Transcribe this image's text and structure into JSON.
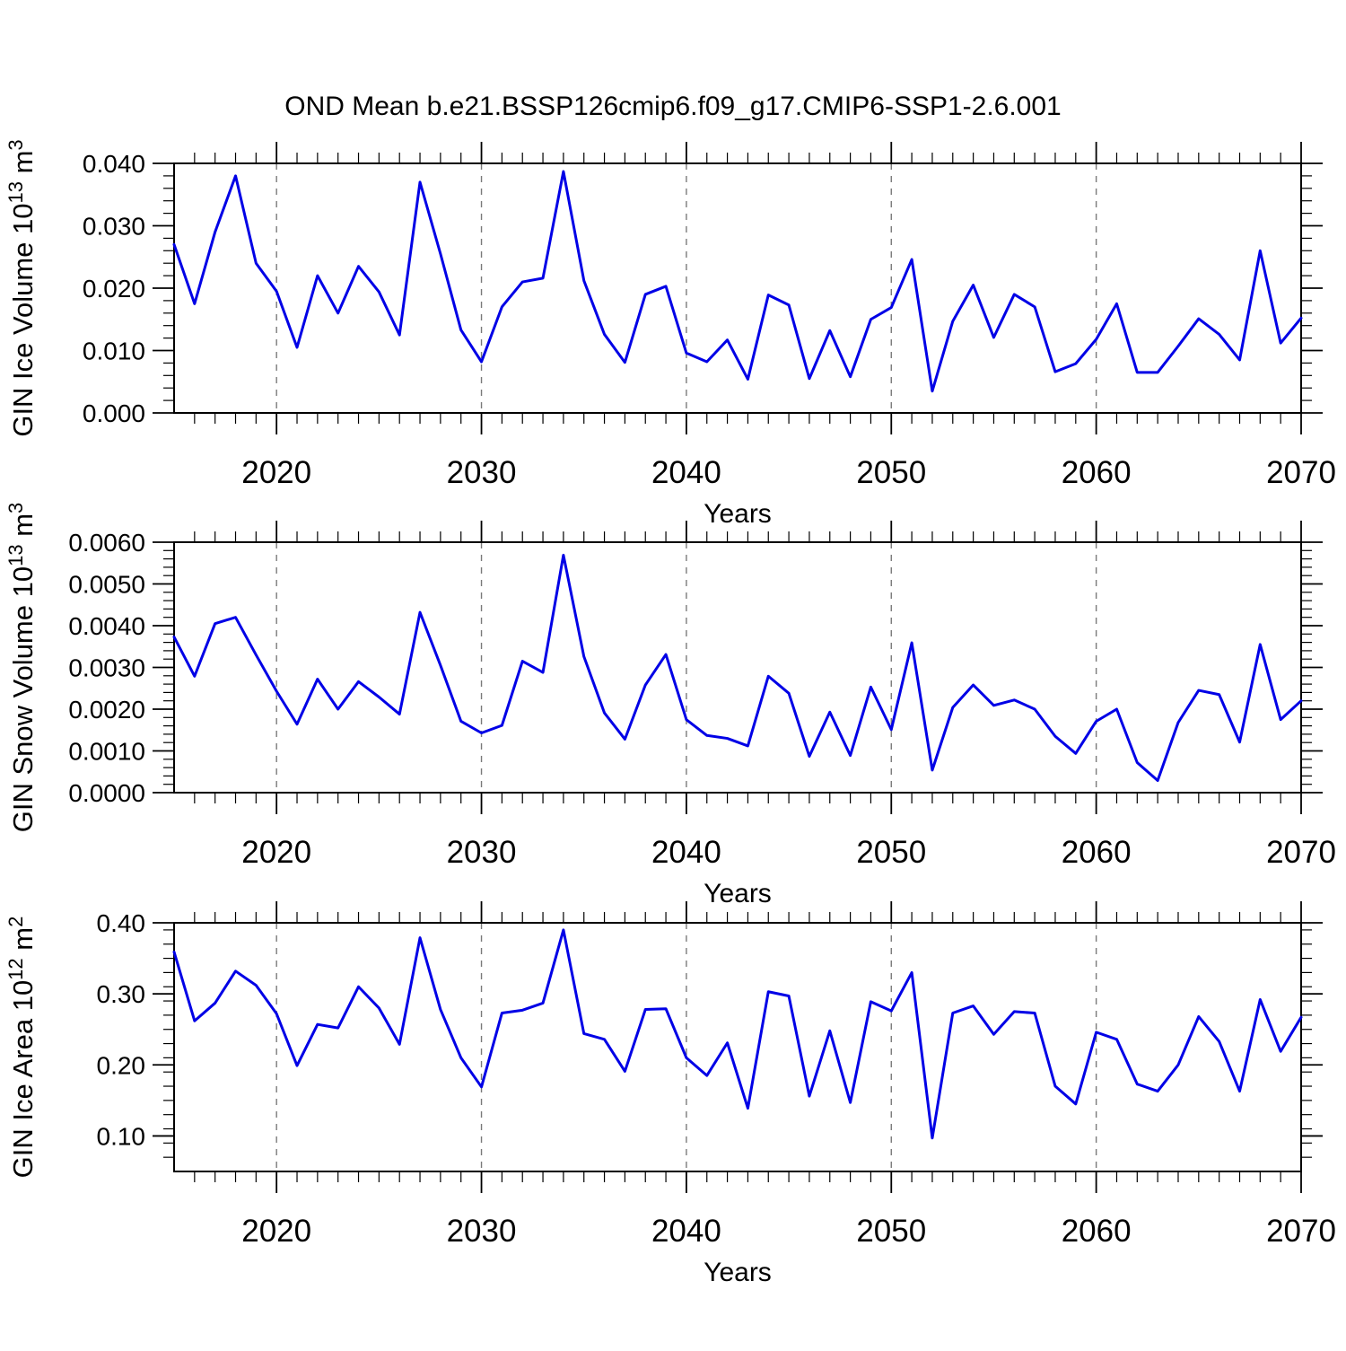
{
  "title": "OND Mean b.e21.BSSP126cmip6.f09_g17.CMIP6-SSP1-2.6.001",
  "colors": {
    "line": "#0000e6",
    "gridline": "#7a7a7a",
    "axis": "#000000",
    "background": "#ffffff"
  },
  "x_axis": {
    "label": "Years",
    "min": 2015,
    "max": 2070,
    "major_tick_years": [
      2020,
      2030,
      2040,
      2050,
      2060,
      2070
    ],
    "major_tick_labels": [
      "2020",
      "2030",
      "2040",
      "2050",
      "2060",
      "2070"
    ],
    "minor_step_years": 1,
    "gridline_years": [
      2020,
      2030,
      2040,
      2050,
      2060
    ],
    "gridline_style": "dashed"
  },
  "years": [
    2015,
    2016,
    2017,
    2018,
    2019,
    2020,
    2021,
    2022,
    2023,
    2024,
    2025,
    2026,
    2027,
    2028,
    2029,
    2030,
    2031,
    2032,
    2033,
    2034,
    2035,
    2036,
    2037,
    2038,
    2039,
    2040,
    2041,
    2042,
    2043,
    2044,
    2045,
    2046,
    2047,
    2048,
    2049,
    2050,
    2051,
    2052,
    2053,
    2054,
    2055,
    2056,
    2057,
    2058,
    2059,
    2060,
    2061,
    2062,
    2063,
    2064,
    2065,
    2066,
    2067,
    2068,
    2069,
    2070
  ],
  "chart_data": [
    {
      "id": "ice-volume",
      "type": "line",
      "title": "",
      "xlabel": "Years",
      "ylabel_plain": "GIN Ice Volume 10^13 m^3",
      "ylabel_parts": [
        {
          "text": "GIN Ice Volume 10",
          "sup": false
        },
        {
          "text": "13",
          "sup": true
        },
        {
          "text": " m",
          "sup": false
        },
        {
          "text": "3",
          "sup": true
        }
      ],
      "ylim": [
        0.0,
        0.04
      ],
      "y_major_step": 0.01,
      "y_minor_step": 0.002,
      "y_decimals": 3,
      "ytick_labels": [
        "0.000",
        "0.010",
        "0.020",
        "0.030",
        "0.040"
      ],
      "grid": false,
      "legend": "none",
      "values": [
        0.027,
        0.0175,
        0.029,
        0.038,
        0.024,
        0.0195,
        0.0105,
        0.022,
        0.016,
        0.0235,
        0.0194,
        0.0125,
        0.037,
        0.0255,
        0.0133,
        0.0082,
        0.017,
        0.021,
        0.0216,
        0.0387,
        0.0212,
        0.0126,
        0.0081,
        0.019,
        0.0203,
        0.0096,
        0.0082,
        0.0117,
        0.0054,
        0.0189,
        0.0173,
        0.0055,
        0.0132,
        0.0058,
        0.015,
        0.0169,
        0.0246,
        0.0035,
        0.0147,
        0.0205,
        0.0121,
        0.019,
        0.017,
        0.0066,
        0.0079,
        0.0118,
        0.0175,
        0.0065,
        0.0065,
        0.0107,
        0.0151,
        0.0126,
        0.0085,
        0.026,
        0.0112,
        0.0152
      ]
    },
    {
      "id": "snow-volume",
      "type": "line",
      "title": "",
      "xlabel": "Years",
      "ylabel_plain": "GIN Snow Volume 10^13 m^3",
      "ylabel_parts": [
        {
          "text": "GIN Snow Volume 10",
          "sup": false
        },
        {
          "text": "13",
          "sup": true
        },
        {
          "text": " m",
          "sup": false
        },
        {
          "text": "3",
          "sup": true
        }
      ],
      "ylim": [
        0.0,
        0.006
      ],
      "y_major_step": 0.001,
      "y_minor_step": 0.0002,
      "y_decimals": 4,
      "ytick_labels": [
        "0.0000",
        "0.0010",
        "0.0020",
        "0.0030",
        "0.0040",
        "0.0050",
        "0.0060"
      ],
      "grid": false,
      "legend": "none",
      "values": [
        0.00373,
        0.00279,
        0.00405,
        0.0042,
        0.0033,
        0.00243,
        0.00164,
        0.00272,
        0.002,
        0.00266,
        0.00229,
        0.00188,
        0.00432,
        0.00305,
        0.00171,
        0.00143,
        0.00161,
        0.00315,
        0.00288,
        0.00569,
        0.00326,
        0.00191,
        0.00128,
        0.00258,
        0.00331,
        0.00175,
        0.00137,
        0.0013,
        0.00112,
        0.00279,
        0.00238,
        0.00087,
        0.00193,
        0.00089,
        0.00253,
        0.00151,
        0.00359,
        0.00054,
        0.00204,
        0.00258,
        0.00209,
        0.00222,
        0.002,
        0.00135,
        0.00094,
        0.00171,
        0.002,
        0.00072,
        0.00029,
        0.00168,
        0.00245,
        0.00235,
        0.00121,
        0.00355,
        0.00175,
        0.0022
      ]
    },
    {
      "id": "ice-area",
      "type": "line",
      "title": "",
      "xlabel": "Years",
      "ylabel_plain": "GIN Ice Area 10^12 m^2",
      "ylabel_parts": [
        {
          "text": "GIN Ice Area 10",
          "sup": false
        },
        {
          "text": "12",
          "sup": true
        },
        {
          "text": " m",
          "sup": false
        },
        {
          "text": "2",
          "sup": true
        }
      ],
      "ylim": [
        0.05,
        0.4
      ],
      "y_major_start": 0.1,
      "y_major_step": 0.1,
      "y_minor_step": 0.02,
      "y_decimals": 2,
      "ytick_labels": [
        "0.10",
        "0.20",
        "0.30",
        "0.40"
      ],
      "grid": false,
      "legend": "none",
      "values": [
        0.359,
        0.262,
        0.287,
        0.332,
        0.312,
        0.272,
        0.199,
        0.257,
        0.252,
        0.31,
        0.28,
        0.229,
        0.379,
        0.278,
        0.21,
        0.169,
        0.273,
        0.277,
        0.287,
        0.39,
        0.244,
        0.236,
        0.191,
        0.278,
        0.279,
        0.21,
        0.185,
        0.231,
        0.139,
        0.303,
        0.297,
        0.156,
        0.248,
        0.147,
        0.289,
        0.276,
        0.33,
        0.097,
        0.273,
        0.283,
        0.243,
        0.275,
        0.273,
        0.17,
        0.145,
        0.246,
        0.236,
        0.173,
        0.163,
        0.2,
        0.268,
        0.233,
        0.163,
        0.292,
        0.219,
        0.267
      ]
    }
  ]
}
